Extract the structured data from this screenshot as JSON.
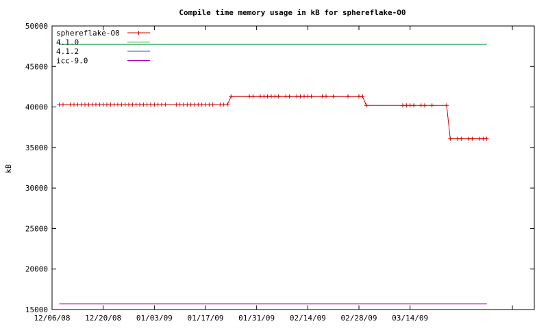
{
  "chart_data": {
    "type": "line",
    "title": "Compile time memory usage in kB for sphereflake-O0",
    "xlabel": "",
    "ylabel": "kB",
    "ylim": [
      15000,
      50000
    ],
    "yticks": [
      "15000",
      "20000",
      "25000",
      "30000",
      "35000",
      "40000",
      "45000",
      "50000"
    ],
    "xlim": [
      "2008-12-06",
      "2009-04-17"
    ],
    "xticks": [
      "12/06/08",
      "12/20/08",
      "01/03/09",
      "01/17/09",
      "01/31/09",
      "02/14/09",
      "02/28/09",
      "03/14/09"
    ],
    "grid": false,
    "legend_position": "top-left",
    "series": [
      {
        "name": "sphereflake-O0",
        "color": "#cc0000",
        "marker": "plus",
        "x": [
          "2008-12-08",
          "2008-12-09",
          "2008-12-11",
          "2008-12-12",
          "2008-12-13",
          "2008-12-14",
          "2008-12-15",
          "2008-12-16",
          "2008-12-17",
          "2008-12-18",
          "2008-12-19",
          "2008-12-20",
          "2008-12-21",
          "2008-12-22",
          "2008-12-23",
          "2008-12-24",
          "2008-12-25",
          "2008-12-26",
          "2008-12-27",
          "2008-12-28",
          "2008-12-29",
          "2008-12-30",
          "2008-12-31",
          "2009-01-01",
          "2009-01-02",
          "2009-01-03",
          "2009-01-04",
          "2009-01-05",
          "2009-01-06",
          "2009-01-09",
          "2009-01-10",
          "2009-01-11",
          "2009-01-12",
          "2009-01-13",
          "2009-01-14",
          "2009-01-15",
          "2009-01-16",
          "2009-01-17",
          "2009-01-18",
          "2009-01-19",
          "2009-01-21",
          "2009-01-22",
          "2009-01-23",
          "2009-01-24",
          "2009-01-29",
          "2009-01-30",
          "2009-02-01",
          "2009-02-02",
          "2009-02-03",
          "2009-02-04",
          "2009-02-05",
          "2009-02-06",
          "2009-02-08",
          "2009-02-09",
          "2009-02-11",
          "2009-02-12",
          "2009-02-13",
          "2009-02-14",
          "2009-02-15",
          "2009-02-18",
          "2009-02-19",
          "2009-02-21",
          "2009-02-25",
          "2009-02-28",
          "2009-03-01",
          "2009-03-02",
          "2009-03-12",
          "2009-03-13",
          "2009-03-14",
          "2009-03-15",
          "2009-03-17",
          "2009-03-18",
          "2009-03-20",
          "2009-03-24",
          "2009-03-25",
          "2009-03-27",
          "2009-03-28",
          "2009-03-30",
          "2009-03-31",
          "2009-04-02",
          "2009-04-03",
          "2009-04-04"
        ],
        "values": [
          40300,
          40300,
          40300,
          40300,
          40300,
          40300,
          40300,
          40300,
          40300,
          40300,
          40300,
          40300,
          40300,
          40300,
          40300,
          40300,
          40300,
          40300,
          40300,
          40300,
          40300,
          40300,
          40300,
          40300,
          40300,
          40300,
          40300,
          40300,
          40300,
          40300,
          40300,
          40300,
          40300,
          40300,
          40300,
          40300,
          40300,
          40300,
          40300,
          40300,
          40300,
          40300,
          40300,
          41300,
          41300,
          41300,
          41300,
          41300,
          41300,
          41300,
          41300,
          41300,
          41300,
          41300,
          41300,
          41300,
          41300,
          41300,
          41300,
          41300,
          41300,
          41300,
          41300,
          41300,
          41300,
          40200,
          40200,
          40200,
          40200,
          40200,
          40200,
          40200,
          40200,
          40200,
          36100,
          36100,
          36100,
          36100,
          36100,
          36100,
          36100,
          36100
        ]
      },
      {
        "name": "4.1.0",
        "color": "#00a000",
        "marker": "none",
        "x": [
          "2008-12-08",
          "2009-04-04"
        ],
        "values": [
          47750,
          47750
        ]
      },
      {
        "name": "4.1.2",
        "color": "#0066cc",
        "marker": "none",
        "x": [
          "2008-12-08",
          "2009-04-04"
        ],
        "values": [
          47750,
          47750
        ]
      },
      {
        "name": "icc-9.0",
        "color": "#b000b0",
        "marker": "none",
        "x": [
          "2008-12-08",
          "2009-04-04"
        ],
        "values": [
          15700,
          15700
        ]
      }
    ]
  }
}
